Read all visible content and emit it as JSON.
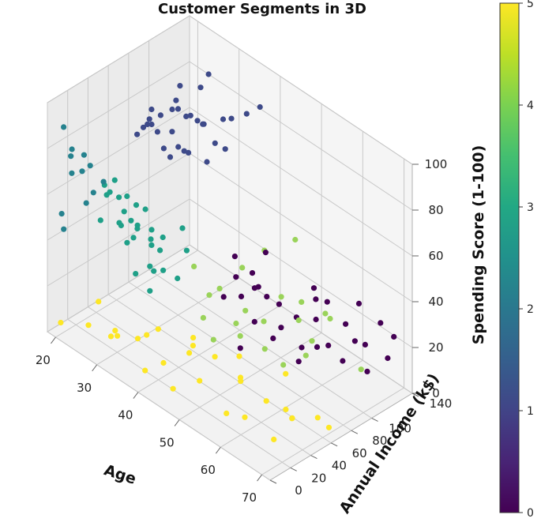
{
  "chart_data": {
    "type": "scatter",
    "projection": "3d",
    "title": "Customer Segments in 3D",
    "xlabel": "Age",
    "ylabel": "Annual Income (k$)",
    "zlabel": "Spending Score (1-100)",
    "xticks": [
      "20",
      "30",
      "40",
      "50",
      "60",
      "70"
    ],
    "yticks": [
      "0",
      "20",
      "40",
      "60",
      "80",
      "100",
      "140"
    ],
    "zticks": [
      "0",
      "20",
      "40",
      "60",
      "80",
      "100"
    ],
    "xlim": [
      18,
      72
    ],
    "ylim": [
      0,
      140
    ],
    "zlim": [
      0,
      100
    ],
    "grid": true,
    "colormap": "viridis",
    "colorbar": {
      "min": 0,
      "max": 5,
      "ticks": [
        "0",
        "1",
        "2",
        "3",
        "4",
        "5"
      ]
    },
    "clusters": [
      {
        "value": 0,
        "color": "#440154",
        "points": [
          [
            45,
            75,
            45
          ],
          [
            48,
            80,
            40
          ],
          [
            50,
            85,
            50
          ],
          [
            52,
            78,
            35
          ],
          [
            47,
            90,
            30
          ],
          [
            55,
            95,
            25
          ],
          [
            58,
            100,
            40
          ],
          [
            60,
            105,
            35
          ],
          [
            53,
            88,
            20
          ],
          [
            56,
            110,
            30
          ],
          [
            62,
            115,
            25
          ],
          [
            64,
            120,
            35
          ],
          [
            66,
            118,
            20
          ],
          [
            68,
            125,
            30
          ],
          [
            51,
            70,
            25
          ],
          [
            49,
            65,
            35
          ],
          [
            57,
            92,
            15
          ],
          [
            59,
            98,
            28
          ],
          [
            61,
            102,
            18
          ],
          [
            63,
            108,
            12
          ],
          [
            65,
            112,
            22
          ],
          [
            67,
            116,
            10
          ],
          [
            54,
            82,
            33
          ],
          [
            46,
            72,
            38
          ],
          [
            44,
            68,
            28
          ],
          [
            70,
            130,
            25
          ],
          [
            69,
            128,
            15
          ],
          [
            50,
            60,
            15
          ],
          [
            55,
            72,
            22
          ],
          [
            58,
            85,
            12
          ],
          [
            52,
            66,
            42
          ],
          [
            60,
            95,
            18
          ]
        ]
      },
      {
        "value": 1,
        "color": "#3e4a89",
        "points": [
          [
            25,
            70,
            80
          ],
          [
            27,
            75,
            85
          ],
          [
            30,
            80,
            90
          ],
          [
            32,
            72,
            78
          ],
          [
            35,
            85,
            88
          ],
          [
            28,
            90,
            95
          ],
          [
            31,
            95,
            82
          ],
          [
            33,
            78,
            75
          ],
          [
            29,
            82,
            92
          ],
          [
            34,
            88,
            86
          ],
          [
            36,
            92,
            79
          ],
          [
            26,
            68,
            84
          ],
          [
            38,
            100,
            90
          ],
          [
            37,
            98,
            76
          ],
          [
            30,
            86,
            70
          ],
          [
            28,
            74,
            72
          ],
          [
            32,
            94,
            98
          ],
          [
            35,
            104,
            85
          ],
          [
            24,
            64,
            76
          ],
          [
            27,
            66,
            90
          ],
          [
            31,
            70,
            84
          ],
          [
            33,
            60,
            78
          ],
          [
            29,
            58,
            88
          ],
          [
            26,
            62,
            82
          ],
          [
            34,
            76,
            93
          ],
          [
            36,
            84,
            73
          ],
          [
            30,
            110,
            97
          ],
          [
            38,
            115,
            88
          ],
          [
            40,
            120,
            92
          ],
          [
            28,
            96,
            80
          ],
          [
            25,
            80,
            74
          ],
          [
            32,
            66,
            96
          ]
        ]
      },
      {
        "value": 2,
        "color": "#26828e",
        "points": [
          [
            20,
            15,
            75
          ],
          [
            22,
            18,
            70
          ],
          [
            19,
            20,
            65
          ],
          [
            21,
            12,
            80
          ],
          [
            23,
            25,
            60
          ],
          [
            20,
            28,
            72
          ],
          [
            22,
            22,
            55
          ],
          [
            21,
            30,
            68
          ],
          [
            19,
            10,
            50
          ],
          [
            18,
            16,
            85
          ],
          [
            23,
            35,
            62
          ],
          [
            20,
            8,
            45
          ]
        ]
      },
      {
        "value": 3,
        "color": "#1fa088",
        "points": [
          [
            25,
            30,
            60
          ],
          [
            28,
            35,
            55
          ],
          [
            30,
            40,
            50
          ],
          [
            27,
            25,
            65
          ],
          [
            32,
            45,
            45
          ],
          [
            26,
            38,
            58
          ],
          [
            29,
            28,
            52
          ],
          [
            31,
            32,
            48
          ],
          [
            24,
            42,
            62
          ],
          [
            33,
            50,
            40
          ],
          [
            30,
            22,
            56
          ],
          [
            28,
            48,
            44
          ],
          [
            26,
            55,
            50
          ],
          [
            34,
            36,
            38
          ],
          [
            22,
            40,
            58
          ],
          [
            25,
            50,
            54
          ],
          [
            27,
            60,
            48
          ],
          [
            35,
            45,
            35
          ],
          [
            29,
            58,
            42
          ],
          [
            32,
            30,
            34
          ],
          [
            23,
            32,
            46
          ],
          [
            30,
            65,
            38
          ],
          [
            36,
            55,
            30
          ],
          [
            24,
            58,
            40
          ],
          [
            31,
            52,
            28
          ],
          [
            28,
            62,
            33
          ],
          [
            33,
            40,
            25
          ],
          [
            26,
            46,
            36
          ],
          [
            37,
            60,
            42
          ],
          [
            34,
            68,
            46
          ]
        ]
      },
      {
        "value": 4,
        "color": "#9ad35a",
        "points": [
          [
            40,
            55,
            40
          ],
          [
            45,
            60,
            35
          ],
          [
            50,
            65,
            30
          ],
          [
            48,
            70,
            45
          ],
          [
            52,
            75,
            25
          ],
          [
            55,
            80,
            38
          ],
          [
            42,
            62,
            28
          ],
          [
            47,
            68,
            20
          ],
          [
            53,
            72,
            15
          ],
          [
            58,
            85,
            30
          ],
          [
            60,
            90,
            22
          ],
          [
            44,
            58,
            12
          ],
          [
            49,
            64,
            18
          ],
          [
            56,
            78,
            10
          ],
          [
            62,
            95,
            35
          ],
          [
            46,
            100,
            42
          ],
          [
            51,
            110,
            50
          ],
          [
            57,
            120,
            20
          ],
          [
            59,
            88,
            15
          ],
          [
            43,
            52,
            22
          ],
          [
            54,
            104,
            28
          ],
          [
            65,
            118,
            8
          ]
        ]
      },
      {
        "value": 5,
        "color": "#fde725",
        "points": [
          [
            20,
            5,
            5
          ],
          [
            25,
            12,
            8
          ],
          [
            30,
            18,
            10
          ],
          [
            35,
            20,
            12
          ],
          [
            40,
            25,
            6
          ],
          [
            45,
            30,
            15
          ],
          [
            50,
            35,
            18
          ],
          [
            55,
            40,
            12
          ],
          [
            60,
            45,
            8
          ],
          [
            65,
            50,
            5
          ],
          [
            70,
            55,
            10
          ],
          [
            28,
            22,
            4
          ],
          [
            38,
            15,
            3
          ],
          [
            48,
            28,
            7
          ],
          [
            58,
            32,
            2
          ],
          [
            68,
            38,
            12
          ],
          [
            33,
            8,
            14
          ],
          [
            43,
            42,
            16
          ],
          [
            53,
            48,
            9
          ],
          [
            63,
            52,
            6
          ],
          [
            23,
            30,
            11
          ],
          [
            36,
            36,
            13
          ],
          [
            46,
            10,
            6
          ],
          [
            56,
            22,
            4
          ],
          [
            66,
            28,
            3
          ],
          [
            31,
            45,
            2
          ],
          [
            41,
            50,
            8
          ],
          [
            51,
            55,
            14
          ],
          [
            61,
            60,
            17
          ],
          [
            71,
            62,
            5
          ]
        ]
      }
    ]
  }
}
